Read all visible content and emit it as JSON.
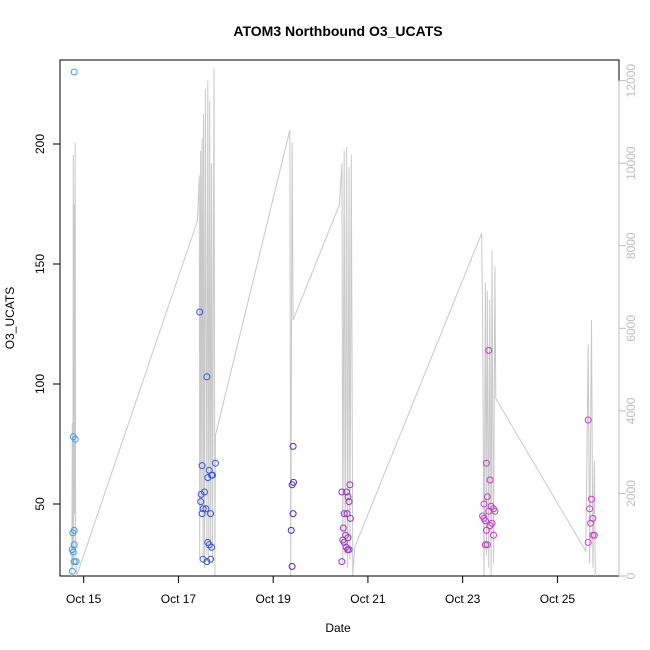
{
  "chart_data": {
    "type": "scatter",
    "title": "ATOM3 Northbound O3_UCATS",
    "xlabel": "Date",
    "ylabel": "O3_UCATS",
    "ylim": [
      20,
      235
    ],
    "y2lim": [
      0,
      12500
    ],
    "xlim": [
      14.5,
      26.3
    ],
    "x_ticks": [
      {
        "value": 15,
        "label": "Oct 15"
      },
      {
        "value": 17,
        "label": "Oct 17"
      },
      {
        "value": 19,
        "label": "Oct 19"
      },
      {
        "value": 21,
        "label": "Oct 21"
      },
      {
        "value": 23,
        "label": "Oct 23"
      },
      {
        "value": 25,
        "label": "Oct 25"
      }
    ],
    "y_ticks": [
      50,
      100,
      150,
      200
    ],
    "y2_ticks": [
      0,
      2000,
      4000,
      6000,
      8000,
      10000,
      12000
    ],
    "series": [
      {
        "color": "#3b9ee8",
        "points": [
          [
            14.8,
            230
          ],
          [
            14.78,
            78
          ],
          [
            14.82,
            77
          ],
          [
            14.8,
            39
          ],
          [
            14.77,
            38
          ],
          [
            14.8,
            33
          ],
          [
            14.76,
            31
          ],
          [
            14.78,
            30
          ],
          [
            14.8,
            26
          ],
          [
            14.84,
            26
          ],
          [
            14.76,
            22
          ]
        ]
      },
      {
        "color": "#3355dd",
        "points": [
          [
            17.45,
            130
          ],
          [
            17.6,
            103
          ],
          [
            17.5,
            66
          ],
          [
            17.78,
            67
          ],
          [
            17.65,
            64
          ],
          [
            17.7,
            62
          ],
          [
            17.62,
            61
          ],
          [
            17.72,
            62
          ],
          [
            17.48,
            54
          ],
          [
            17.55,
            55
          ],
          [
            17.47,
            51
          ],
          [
            17.52,
            48
          ],
          [
            17.58,
            48
          ],
          [
            17.5,
            46
          ],
          [
            17.68,
            46
          ],
          [
            17.62,
            34
          ],
          [
            17.65,
            33
          ],
          [
            17.7,
            32
          ],
          [
            17.52,
            27
          ],
          [
            17.6,
            26
          ],
          [
            17.68,
            27
          ]
        ]
      },
      {
        "color": "#5522cc",
        "points": [
          [
            19.42,
            74
          ],
          [
            19.4,
            58
          ],
          [
            19.43,
            59
          ],
          [
            19.42,
            46
          ],
          [
            19.38,
            39
          ],
          [
            19.4,
            24
          ]
        ]
      },
      {
        "color": "#9933cc",
        "points": [
          [
            20.45,
            55
          ],
          [
            20.55,
            55
          ],
          [
            20.62,
            58
          ],
          [
            20.58,
            53
          ],
          [
            20.6,
            51
          ],
          [
            20.5,
            46
          ],
          [
            20.56,
            46
          ],
          [
            20.63,
            44
          ],
          [
            20.48,
            40
          ],
          [
            20.53,
            37
          ],
          [
            20.58,
            36
          ],
          [
            20.47,
            35
          ],
          [
            20.5,
            34
          ],
          [
            20.54,
            32
          ],
          [
            20.57,
            31
          ],
          [
            20.6,
            31
          ],
          [
            20.45,
            26
          ]
        ]
      },
      {
        "color": "#cc33cc",
        "points": [
          [
            23.55,
            114
          ],
          [
            23.5,
            67
          ],
          [
            23.58,
            60
          ],
          [
            23.52,
            53
          ],
          [
            23.45,
            50
          ],
          [
            23.6,
            49
          ],
          [
            23.65,
            48
          ],
          [
            23.68,
            47
          ],
          [
            23.55,
            47
          ],
          [
            23.42,
            45
          ],
          [
            23.45,
            44
          ],
          [
            23.48,
            43
          ],
          [
            23.62,
            42
          ],
          [
            23.58,
            41
          ],
          [
            23.5,
            39
          ],
          [
            23.65,
            37
          ],
          [
            23.48,
            33
          ],
          [
            23.52,
            33
          ]
        ]
      },
      {
        "color": "#dd33dd",
        "points": [
          [
            25.65,
            85
          ],
          [
            25.72,
            52
          ],
          [
            25.68,
            48
          ],
          [
            25.75,
            44
          ],
          [
            25.7,
            42
          ],
          [
            25.75,
            37
          ],
          [
            25.78,
            37
          ],
          [
            25.65,
            34
          ]
        ]
      }
    ],
    "altitude_line": {
      "color": "#c8c8c8",
      "points": [
        [
          14.75,
          0
        ],
        [
          14.76,
          3700
        ],
        [
          14.77,
          200
        ],
        [
          14.78,
          10200
        ],
        [
          14.79,
          300
        ],
        [
          14.8,
          9000
        ],
        [
          14.81,
          1500
        ],
        [
          14.82,
          10500
        ],
        [
          14.83,
          800
        ],
        [
          14.85,
          0
        ],
        [
          17.4,
          8600
        ],
        [
          17.44,
          9700
        ],
        [
          17.45,
          400
        ],
        [
          17.47,
          10300
        ],
        [
          17.48,
          1600
        ],
        [
          17.5,
          10600
        ],
        [
          17.52,
          400
        ],
        [
          17.53,
          11200
        ],
        [
          17.55,
          200
        ],
        [
          17.57,
          11800
        ],
        [
          17.6,
          500
        ],
        [
          17.62,
          12000
        ],
        [
          17.64,
          300
        ],
        [
          17.66,
          11500
        ],
        [
          17.68,
          600
        ],
        [
          17.7,
          10000
        ],
        [
          17.72,
          300
        ],
        [
          17.75,
          12300
        ],
        [
          17.77,
          0
        ],
        [
          17.78,
          3400
        ],
        [
          19.35,
          10800
        ],
        [
          19.37,
          0
        ],
        [
          19.4,
          10500
        ],
        [
          19.42,
          6200
        ],
        [
          20.4,
          9000
        ],
        [
          20.45,
          10000
        ],
        [
          20.47,
          300
        ],
        [
          20.5,
          10300
        ],
        [
          20.52,
          500
        ],
        [
          20.55,
          10400
        ],
        [
          20.57,
          200
        ],
        [
          20.6,
          9900
        ],
        [
          20.62,
          400
        ],
        [
          20.65,
          10200
        ],
        [
          20.68,
          0
        ],
        [
          20.72,
          700
        ],
        [
          23.4,
          8300
        ],
        [
          23.42,
          6300
        ],
        [
          23.45,
          0
        ],
        [
          23.48,
          7100
        ],
        [
          23.5,
          500
        ],
        [
          23.52,
          6900
        ],
        [
          23.55,
          200
        ],
        [
          23.57,
          6700
        ],
        [
          23.6,
          0
        ],
        [
          23.62,
          7900
        ],
        [
          23.65,
          300
        ],
        [
          23.68,
          7500
        ],
        [
          23.7,
          4300
        ],
        [
          25.6,
          600
        ],
        [
          25.65,
          5600
        ],
        [
          25.68,
          300
        ],
        [
          25.72,
          6200
        ],
        [
          25.75,
          200
        ],
        [
          25.78,
          2800
        ],
        [
          25.8,
          0
        ]
      ]
    }
  }
}
